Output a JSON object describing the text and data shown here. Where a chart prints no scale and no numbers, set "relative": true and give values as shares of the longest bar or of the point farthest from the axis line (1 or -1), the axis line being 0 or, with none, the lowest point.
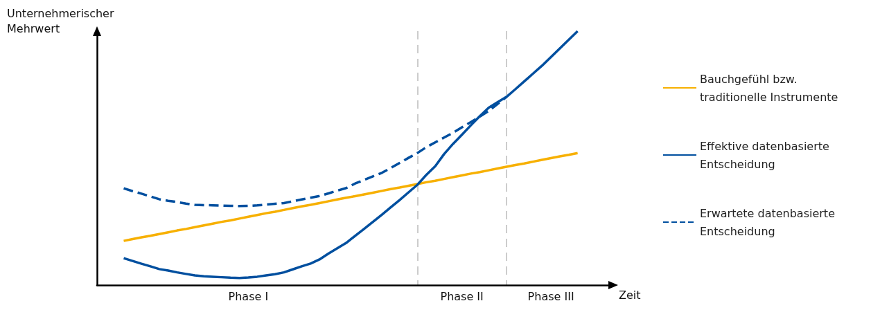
{
  "chart_data": {
    "type": "line",
    "relative": true,
    "xlabel": "Zeit",
    "ylabel": "Unternehmerischer Mehrwert",
    "categories": [
      null,
      null,
      null,
      null,
      null,
      null,
      null,
      null,
      null,
      null,
      null,
      null,
      null,
      null,
      null,
      null,
      null,
      "Phase I",
      null,
      null,
      null,
      null,
      null,
      null,
      null,
      null,
      null,
      null,
      null,
      null,
      null,
      null,
      null,
      null,
      null,
      null,
      null,
      null,
      null,
      null,
      null,
      "Phase II",
      null,
      null,
      null,
      null,
      null,
      null,
      null,
      null,
      null,
      "Phase III",
      null,
      null,
      null,
      null,
      null,
      null,
      null
    ],
    "grid": "x",
    "legend": "right",
    "marker": "none",
    "series": [
      {
        "name": "Bauchgefühl bzw. traditionelle Instrumente",
        "color": "#f7b000",
        "line_style": "solid",
        "values": [
          null,
          null,
          null,
          0.174,
          0.181,
          0.188,
          0.194,
          0.201,
          0.208,
          0.215,
          0.221,
          0.228,
          0.235,
          0.242,
          0.249,
          0.255,
          0.262,
          0.269,
          0.276,
          0.283,
          0.289,
          0.296,
          0.303,
          0.31,
          0.316,
          0.323,
          0.33,
          0.337,
          0.344,
          0.35,
          0.357,
          0.364,
          0.371,
          0.378,
          0.384,
          0.391,
          0.398,
          0.405,
          0.411,
          0.418,
          0.425,
          0.432,
          0.439,
          0.445,
          0.452,
          0.459,
          0.466,
          0.473,
          0.479,
          0.486,
          0.493,
          0.5,
          0.507,
          0.513,
          0.52,
          null,
          null,
          null,
          null
        ]
      },
      {
        "name": "Effektive datenbasierte Entscheidung",
        "color": "#004f9f",
        "line_style": "solid",
        "values": [
          null,
          null,
          null,
          0.106,
          0.095,
          0.084,
          0.074,
          0.063,
          0.057,
          0.05,
          0.044,
          0.038,
          0.035,
          0.033,
          0.031,
          0.029,
          0.028,
          0.03,
          0.033,
          0.038,
          0.043,
          0.05,
          0.062,
          0.074,
          0.085,
          0.101,
          0.124,
          0.145,
          0.166,
          0.194,
          0.221,
          0.249,
          0.277,
          0.306,
          0.335,
          0.365,
          0.395,
          0.434,
          0.468,
          0.516,
          0.556,
          0.592,
          0.629,
          0.665,
          0.698,
          0.72,
          0.741,
          0.771,
          0.802,
          0.833,
          0.864,
          0.898,
          0.932,
          0.966,
          1.0,
          null,
          null,
          null,
          null
        ]
      },
      {
        "name": "Erwartete datenbasierte Entscheidung",
        "color": "#004f9f",
        "line_style": "dashed",
        "values": [
          null,
          null,
          null,
          0.381,
          0.37,
          0.36,
          0.349,
          0.338,
          0.332,
          0.327,
          0.321,
          0.316,
          0.315,
          0.314,
          0.313,
          0.312,
          0.311,
          0.312,
          0.314,
          0.317,
          0.32,
          0.323,
          0.33,
          0.337,
          0.344,
          0.351,
          0.361,
          0.372,
          0.382,
          0.4,
          0.414,
          0.428,
          0.442,
          0.461,
          0.481,
          0.501,
          0.52,
          0.543,
          0.562,
          0.581,
          0.6,
          0.621,
          0.642,
          0.663,
          0.686,
          0.713,
          0.741,
          null,
          null,
          null,
          null,
          null,
          null,
          null,
          null,
          null,
          null,
          null,
          null
        ]
      }
    ]
  }
}
